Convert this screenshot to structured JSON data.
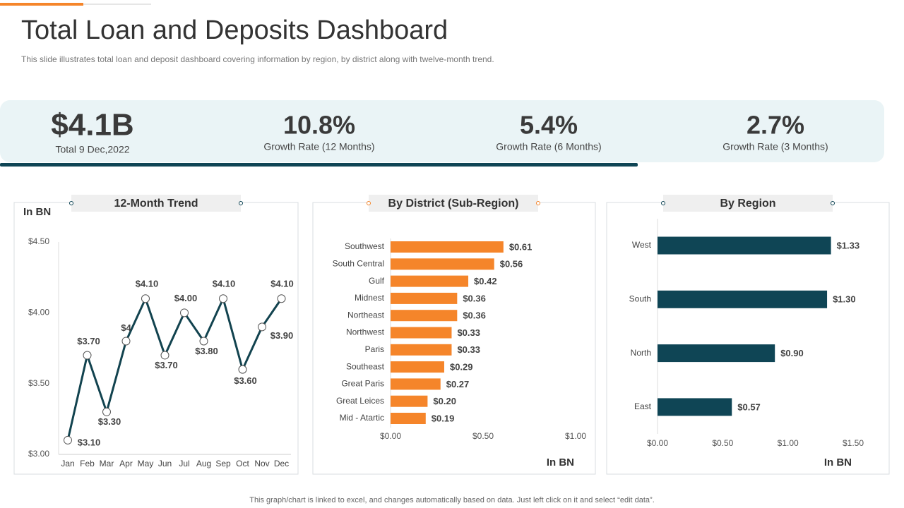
{
  "header": {
    "title": "Total Loan and Deposits Dashboard",
    "subtitle": "This slide illustrates total loan and deposit dashboard covering information by region, by district along with twelve-month  trend."
  },
  "kpis": [
    {
      "value": "$4.1B",
      "label": "Total 9 Dec,2022"
    },
    {
      "value": "10.8%",
      "label": "Growth Rate (12 Months)"
    },
    {
      "value": "5.4%",
      "label": "Growth Rate (6 Months)"
    },
    {
      "value": "2.7%",
      "label": "Growth Rate (3 Months)"
    }
  ],
  "chart_data": [
    {
      "type": "line",
      "title": "12-Month Trend",
      "y_label": "In BN",
      "color": "#12434f",
      "categories": [
        "Jan",
        "Feb",
        "Mar",
        "Apr",
        "May",
        "Jun",
        "Jul",
        "Aug",
        "Sep",
        "Oct",
        "Nov",
        "Dec"
      ],
      "values": [
        3.1,
        3.7,
        3.3,
        3.8,
        4.1,
        3.7,
        4.0,
        3.8,
        4.1,
        3.6,
        3.9,
        4.1
      ],
      "value_labels": [
        "$3.10",
        "$3.70",
        "$3.30",
        "$4",
        "$4.10",
        "$3.70",
        "$4.00",
        "$3.80",
        "$4.10",
        "$3.60",
        "$3.90",
        "$4.10"
      ],
      "ylim": [
        3,
        4.5
      ],
      "yticks": [
        {
          "value": 3,
          "label": "$3.00"
        },
        {
          "value": 3.5,
          "label": "$3.50"
        },
        {
          "value": 4,
          "label": "$4.00"
        },
        {
          "value": 4.5,
          "label": "$4.50"
        }
      ]
    },
    {
      "type": "hbar",
      "title": "By District (Sub-Region)",
      "x_label": "In BN",
      "color": "#f5852a",
      "categories": [
        "Southwest",
        "South Central",
        "Gulf",
        "Midnest",
        "Northeast",
        "Northwest",
        "Paris",
        "Southeast",
        "Great Paris",
        "Great Leices",
        "Mid - Atartic"
      ],
      "values": [
        0.61,
        0.56,
        0.42,
        0.36,
        0.36,
        0.33,
        0.33,
        0.29,
        0.27,
        0.2,
        0.19
      ],
      "value_labels": [
        "$0.61",
        "$0.56",
        "$0.42",
        "$0.36",
        "$0.36",
        "$0.33",
        "$0.33",
        "$0.29",
        "$0.27",
        "$0.20",
        "$0.19"
      ],
      "xlim": [
        0,
        1
      ],
      "xticks": [
        {
          "value": 0,
          "label": "$0.00"
        },
        {
          "value": 0.5,
          "label": "$0.50"
        },
        {
          "value": 1,
          "label": "$1.00"
        }
      ]
    },
    {
      "type": "hbar",
      "title": "By Region",
      "x_label": "In BN",
      "color": "#0f4555",
      "categories": [
        "West",
        "South",
        "North",
        "East"
      ],
      "values": [
        1.33,
        1.3,
        0.9,
        0.57
      ],
      "value_labels": [
        "$1.33",
        "$1.30",
        "$0.90",
        "$0.57"
      ],
      "xlim": [
        0,
        1.5
      ],
      "xticks": [
        {
          "value": 0,
          "label": "$0.00"
        },
        {
          "value": 0.5,
          "label": "$0.50"
        },
        {
          "value": 1,
          "label": "$1.00"
        },
        {
          "value": 1.5,
          "label": "$1.50"
        }
      ]
    }
  ],
  "footer": "This graph/chart is linked to excel, and changes automatically based on data. Just left click on it and select “edit data”."
}
